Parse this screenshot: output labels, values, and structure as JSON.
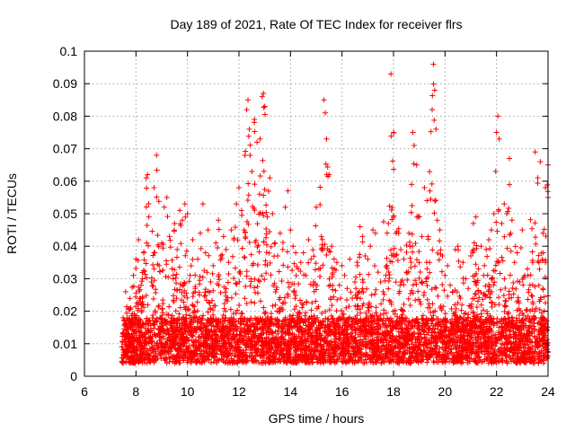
{
  "chart_data": {
    "type": "scatter",
    "title": "Day 189 of 2021, Rate Of TEC Index for receiver flrs",
    "xlabel": "GPS time / hours",
    "ylabel": "ROTI / TECUs",
    "xlim": [
      6,
      24
    ],
    "ylim": [
      0,
      0.1
    ],
    "x_ticks": [
      "6",
      "8",
      "10",
      "12",
      "14",
      "16",
      "18",
      "20",
      "22",
      "24"
    ],
    "y_ticks": [
      "0",
      "0.01",
      "0.02",
      "0.03",
      "0.04",
      "0.05",
      "0.06",
      "0.07",
      "0.08",
      "0.09",
      "0.1"
    ],
    "grid": true,
    "marker": "+",
    "series_color": "#ff0000",
    "x_range_of_data": [
      7.45,
      24.0
    ],
    "points": [
      [
        7.5,
        0.018
      ],
      [
        7.6,
        0.026
      ],
      [
        7.7,
        0.009
      ],
      [
        7.8,
        0.021
      ],
      [
        7.9,
        0.031
      ],
      [
        8.0,
        0.036
      ],
      [
        8.1,
        0.042
      ],
      [
        8.2,
        0.028
      ],
      [
        8.3,
        0.038
      ],
      [
        8.4,
        0.061
      ],
      [
        8.45,
        0.062
      ],
      [
        8.5,
        0.049
      ],
      [
        8.6,
        0.029
      ],
      [
        8.7,
        0.058
      ],
      [
        8.8,
        0.068
      ],
      [
        8.9,
        0.034
      ],
      [
        9.0,
        0.041
      ],
      [
        9.1,
        0.052
      ],
      [
        9.2,
        0.055
      ],
      [
        9.3,
        0.043
      ],
      [
        9.4,
        0.033
      ],
      [
        9.5,
        0.047
      ],
      [
        9.6,
        0.039
      ],
      [
        9.7,
        0.051
      ],
      [
        9.8,
        0.048
      ],
      [
        9.9,
        0.053
      ],
      [
        10.0,
        0.05
      ],
      [
        10.1,
        0.031
      ],
      [
        10.2,
        0.042
      ],
      [
        10.3,
        0.027
      ],
      [
        10.4,
        0.036
      ],
      [
        10.5,
        0.044
      ],
      [
        10.6,
        0.053
      ],
      [
        10.7,
        0.038
      ],
      [
        10.8,
        0.045
      ],
      [
        10.9,
        0.029
      ],
      [
        11.0,
        0.034
      ],
      [
        11.1,
        0.041
      ],
      [
        11.2,
        0.048
      ],
      [
        11.3,
        0.037
      ],
      [
        11.4,
        0.043
      ],
      [
        11.5,
        0.039
      ],
      [
        11.6,
        0.035
      ],
      [
        11.7,
        0.045
      ],
      [
        11.8,
        0.042
      ],
      [
        11.9,
        0.053
      ],
      [
        12.0,
        0.058
      ],
      [
        12.1,
        0.051
      ],
      [
        12.2,
        0.045
      ],
      [
        12.3,
        0.082
      ],
      [
        12.35,
        0.085
      ],
      [
        12.4,
        0.076
      ],
      [
        12.5,
        0.063
      ],
      [
        12.6,
        0.079
      ],
      [
        12.7,
        0.072
      ],
      [
        12.8,
        0.056
      ],
      [
        12.9,
        0.086
      ],
      [
        12.95,
        0.087
      ],
      [
        13.0,
        0.083
      ],
      [
        13.1,
        0.049
      ],
      [
        13.2,
        0.061
      ],
      [
        13.3,
        0.05
      ],
      [
        13.4,
        0.041
      ],
      [
        13.5,
        0.037
      ],
      [
        13.6,
        0.044
      ],
      [
        13.7,
        0.039
      ],
      [
        13.8,
        0.052
      ],
      [
        13.9,
        0.057
      ],
      [
        14.0,
        0.045
      ],
      [
        14.1,
        0.04
      ],
      [
        14.2,
        0.038
      ],
      [
        14.3,
        0.033
      ],
      [
        14.4,
        0.035
      ],
      [
        14.5,
        0.038
      ],
      [
        14.6,
        0.031
      ],
      [
        14.7,
        0.042
      ],
      [
        14.8,
        0.036
      ],
      [
        14.9,
        0.029
      ],
      [
        15.0,
        0.052
      ],
      [
        15.1,
        0.033
      ],
      [
        15.2,
        0.039
      ],
      [
        15.3,
        0.085
      ],
      [
        15.35,
        0.081
      ],
      [
        15.4,
        0.073
      ],
      [
        15.5,
        0.062
      ],
      [
        15.6,
        0.04
      ],
      [
        15.7,
        0.033
      ],
      [
        15.8,
        0.035
      ],
      [
        15.9,
        0.028
      ],
      [
        16.0,
        0.034
      ],
      [
        16.1,
        0.031
      ],
      [
        16.2,
        0.027
      ],
      [
        16.3,
        0.036
      ],
      [
        16.4,
        0.024
      ],
      [
        16.5,
        0.029
      ],
      [
        16.6,
        0.034
      ],
      [
        16.7,
        0.046
      ],
      [
        16.8,
        0.043
      ],
      [
        16.9,
        0.037
      ],
      [
        17.0,
        0.036
      ],
      [
        17.1,
        0.04
      ],
      [
        17.2,
        0.045
      ],
      [
        17.3,
        0.044
      ],
      [
        17.4,
        0.032
      ],
      [
        17.5,
        0.029
      ],
      [
        17.6,
        0.026
      ],
      [
        17.7,
        0.031
      ],
      [
        17.8,
        0.047
      ],
      [
        17.9,
        0.093
      ],
      [
        18.0,
        0.075
      ],
      [
        18.1,
        0.044
      ],
      [
        18.2,
        0.044
      ],
      [
        18.3,
        0.029
      ],
      [
        18.4,
        0.036
      ],
      [
        18.5,
        0.032
      ],
      [
        18.6,
        0.044
      ],
      [
        18.7,
        0.059
      ],
      [
        18.75,
        0.075
      ],
      [
        18.8,
        0.071
      ],
      [
        18.9,
        0.065
      ],
      [
        19.0,
        0.049
      ],
      [
        19.1,
        0.043
      ],
      [
        19.2,
        0.058
      ],
      [
        19.3,
        0.054
      ],
      [
        19.4,
        0.035
      ],
      [
        19.5,
        0.082
      ],
      [
        19.55,
        0.096
      ],
      [
        19.6,
        0.088
      ],
      [
        19.65,
        0.076
      ],
      [
        19.7,
        0.048
      ],
      [
        19.8,
        0.045
      ],
      [
        19.9,
        0.037
      ],
      [
        20.0,
        0.031
      ],
      [
        20.1,
        0.034
      ],
      [
        20.2,
        0.028
      ],
      [
        20.3,
        0.026
      ],
      [
        20.4,
        0.039
      ],
      [
        20.5,
        0.04
      ],
      [
        20.6,
        0.024
      ],
      [
        20.7,
        0.035
      ],
      [
        20.8,
        0.03
      ],
      [
        20.9,
        0.027
      ],
      [
        21.0,
        0.037
      ],
      [
        21.1,
        0.047
      ],
      [
        21.2,
        0.049
      ],
      [
        21.3,
        0.033
      ],
      [
        21.4,
        0.04
      ],
      [
        21.5,
        0.031
      ],
      [
        21.6,
        0.039
      ],
      [
        21.7,
        0.042
      ],
      [
        21.8,
        0.045
      ],
      [
        21.9,
        0.05
      ],
      [
        22.0,
        0.075
      ],
      [
        22.05,
        0.08
      ],
      [
        22.1,
        0.073
      ],
      [
        22.2,
        0.047
      ],
      [
        22.3,
        0.053
      ],
      [
        22.4,
        0.05
      ],
      [
        22.5,
        0.067
      ],
      [
        22.6,
        0.048
      ],
      [
        22.7,
        0.035
      ],
      [
        22.8,
        0.038
      ],
      [
        22.9,
        0.029
      ],
      [
        23.0,
        0.045
      ],
      [
        23.1,
        0.031
      ],
      [
        23.2,
        0.033
      ],
      [
        23.3,
        0.028
      ],
      [
        23.4,
        0.035
      ],
      [
        23.5,
        0.069
      ],
      [
        23.6,
        0.061
      ],
      [
        23.7,
        0.066
      ],
      [
        23.8,
        0.044
      ],
      [
        23.9,
        0.058
      ],
      [
        24.0,
        0.055
      ],
      [
        24.0,
        0.065
      ],
      [
        23.9,
        0.035
      ],
      [
        23.8,
        0.027
      ]
    ],
    "baseline_band": [
      0.004,
      0.018
    ]
  }
}
